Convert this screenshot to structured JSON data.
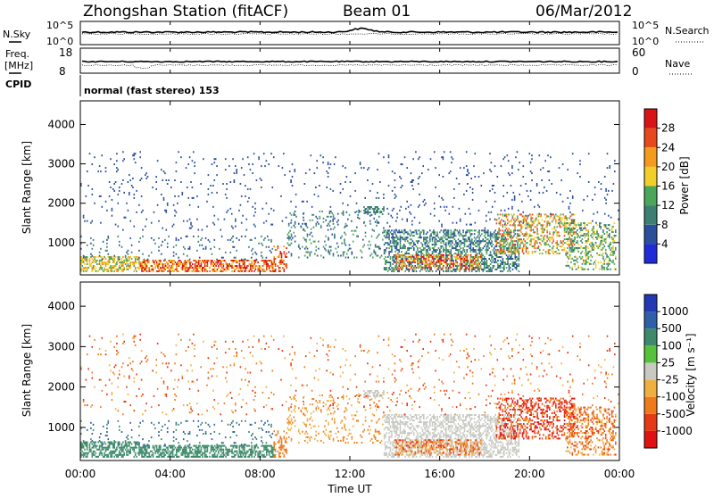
{
  "header": {
    "station": "Zhongshan Station (fitACF)",
    "beam": "Beam 01",
    "date": "06/Mar/2012"
  },
  "strips": {
    "nsky_label": "N.Sky",
    "nsearch_label": "N.Search",
    "noise_ticks_left": [
      "10^5",
      "10^0"
    ],
    "noise_ticks_right": [
      "10^5",
      "10^0"
    ],
    "freq_label": "Freq.",
    "freq_unit": "[MHz]",
    "freq_ticks": [
      "18",
      "8"
    ],
    "nave_label": "Nave",
    "nave_ticks": [
      "60",
      "0"
    ],
    "cpid_label": "CPID",
    "cpid_text": "normal (fast stereo) 153"
  },
  "chart_data": [
    {
      "type": "heatmap",
      "panel": "power",
      "ylabel": "Slant Range [km]",
      "ylim": [
        180,
        4600
      ],
      "yticks": [
        "1000",
        "2000",
        "3000",
        "4000"
      ],
      "colorbar_label": "Power [dB]",
      "colorbar_ticks": [
        "4",
        "8",
        "12",
        "16",
        "20",
        "24",
        "28"
      ],
      "colorbar_colors": [
        "#1f2bd8",
        "#2a4f9d",
        "#3d7f72",
        "#4aa65a",
        "#f2cf28",
        "#f59a1c",
        "#e8491a",
        "#d81414"
      ]
    },
    {
      "type": "heatmap",
      "panel": "velocity",
      "ylabel": "Slant Range [km]",
      "ylim": [
        180,
        4600
      ],
      "yticks": [
        "1000",
        "2000",
        "3000",
        "4000"
      ],
      "colorbar_label": "Velocity [m s⁻¹]",
      "colorbar_ticks": [
        "1000",
        "500",
        "100",
        "25",
        "-25",
        "-100",
        "-500",
        "-1000"
      ],
      "colorbar_colors": [
        "#2238b5",
        "#2f5fa8",
        "#3c8a6a",
        "#55c23b",
        "#c9c9c2",
        "#f0b040",
        "#f07a1a",
        "#e63a17",
        "#e11111"
      ]
    }
  ],
  "xaxis": {
    "label": "Time UT",
    "ticks": [
      "00:00",
      "04:00",
      "08:00",
      "12:00",
      "16:00",
      "20:00",
      "00:00"
    ]
  }
}
